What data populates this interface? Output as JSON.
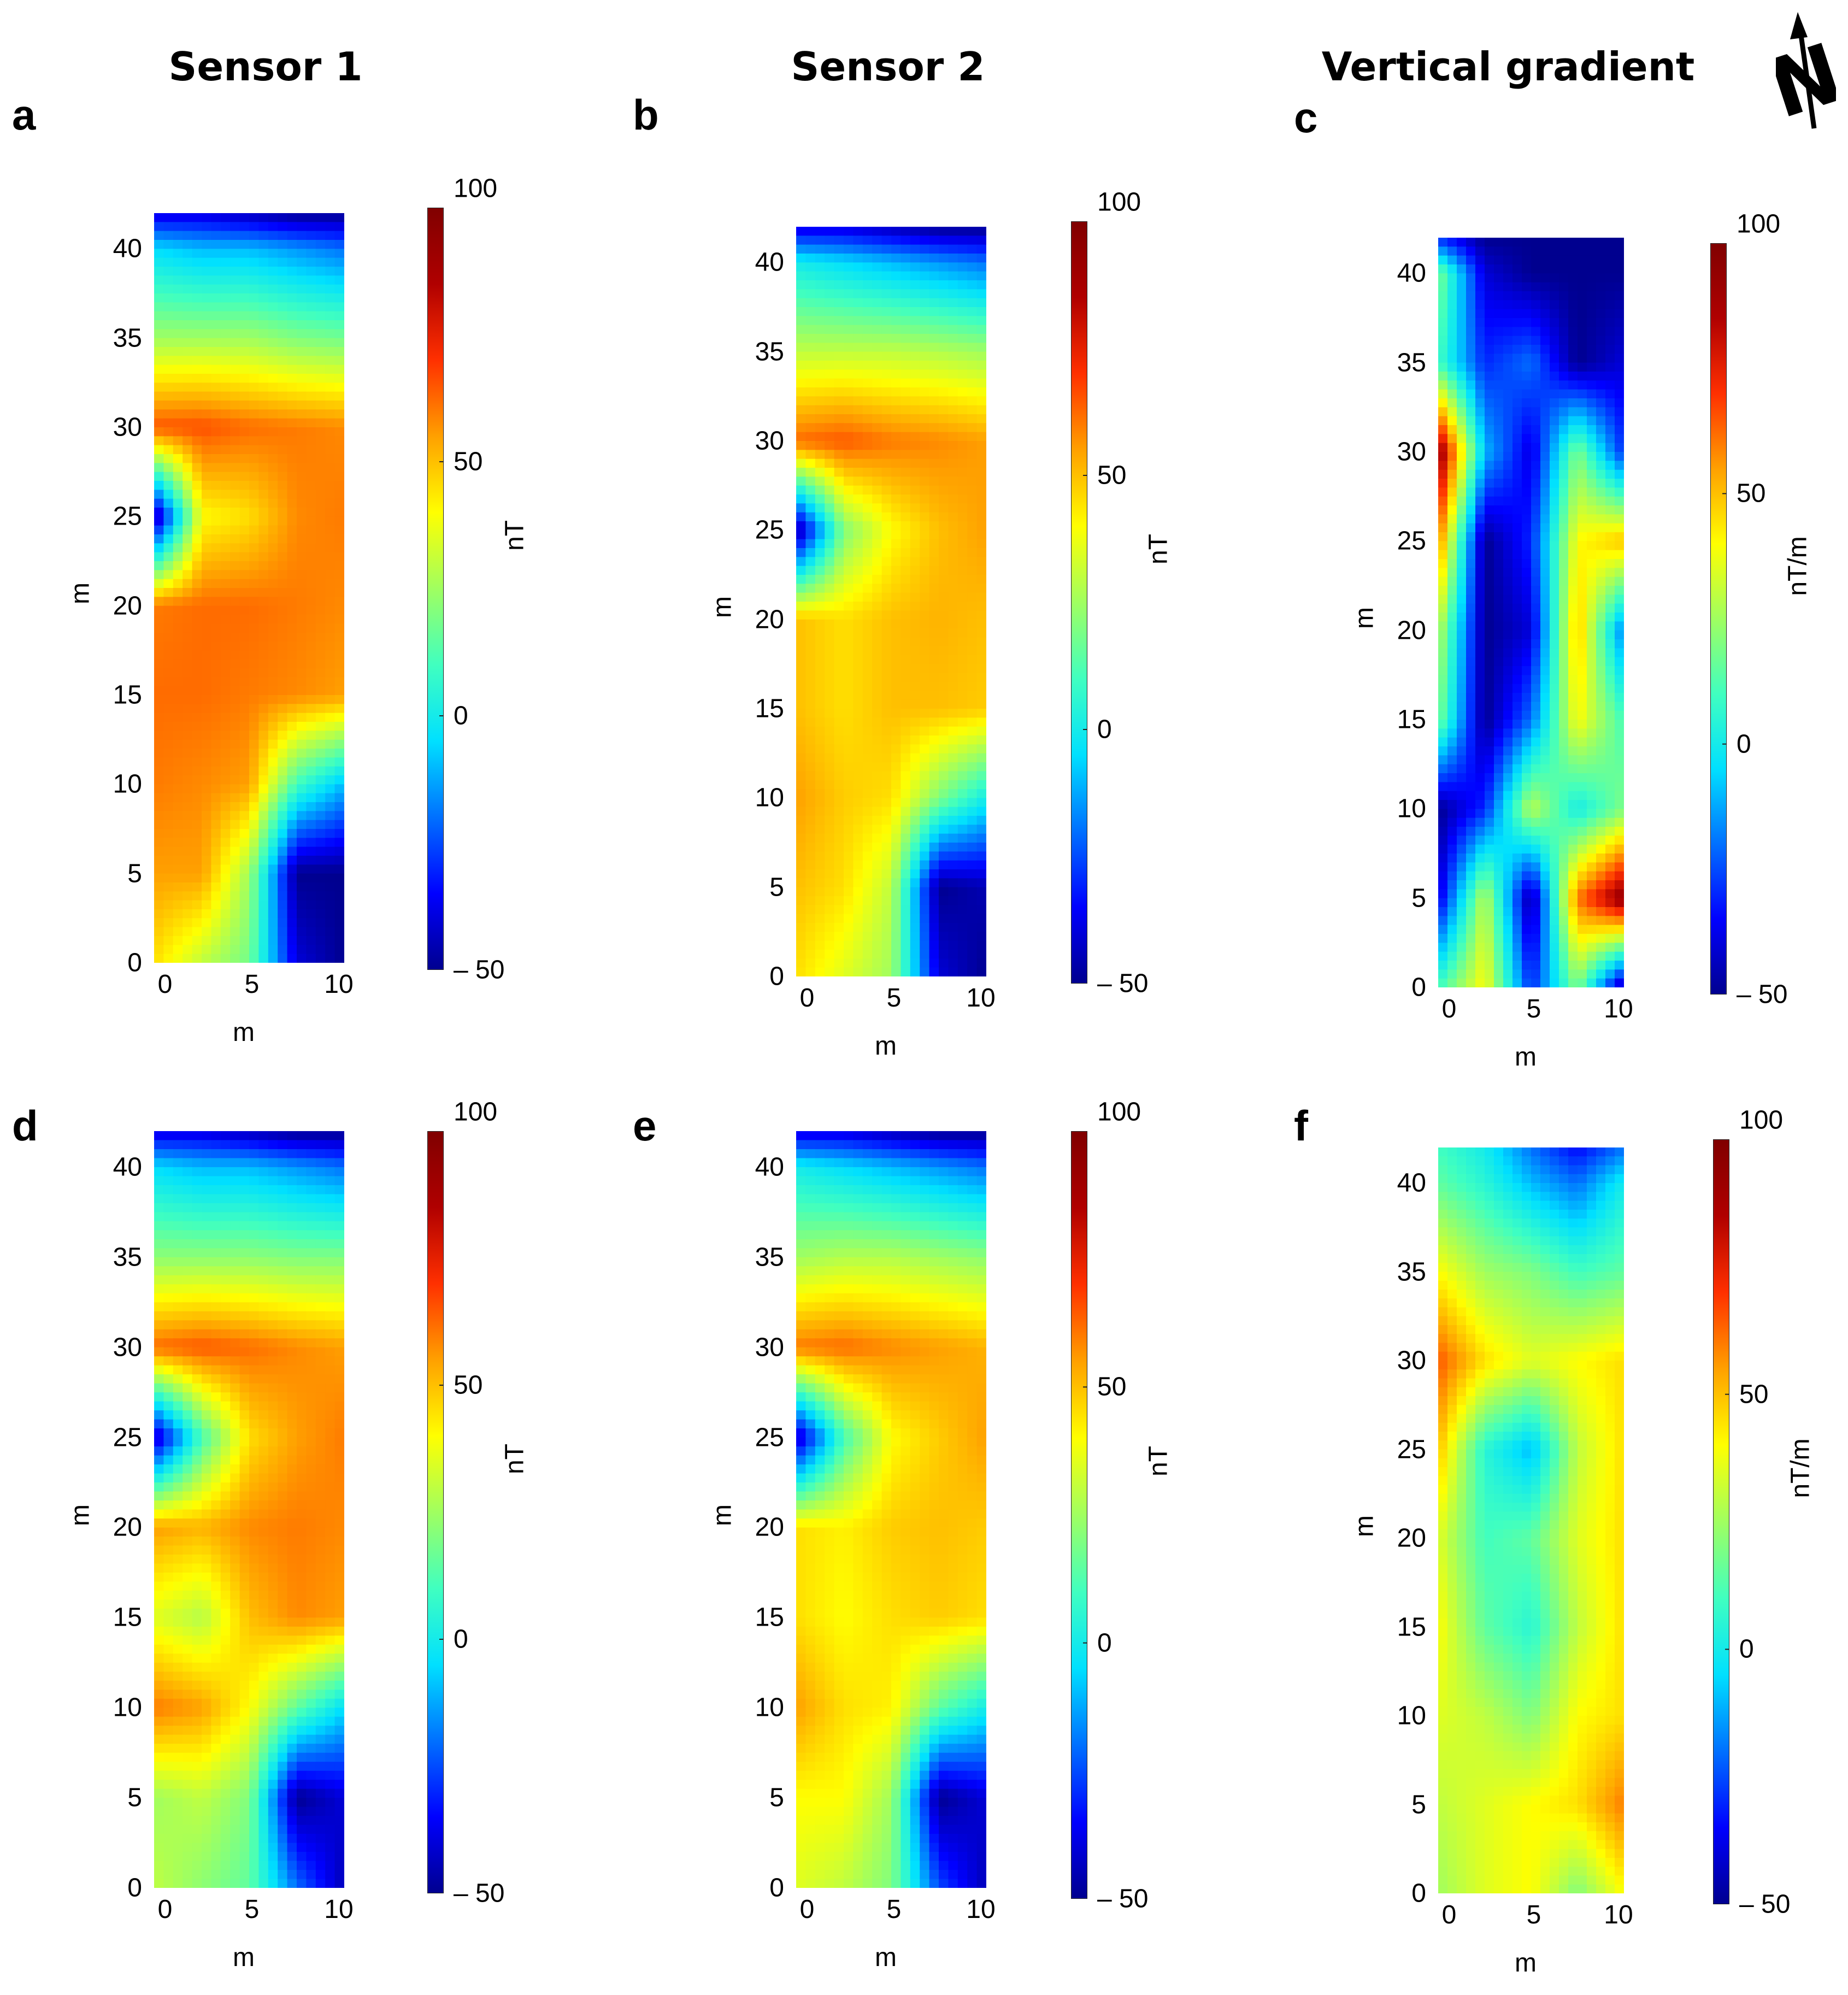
{
  "column_titles": [
    "Sensor 1",
    "Sensor 2",
    "Vertical gradient"
  ],
  "colors": {
    "colormap": [
      "#00008f",
      "#0000ff",
      "#0070ff",
      "#00e0ff",
      "#40ffc0",
      "#a0ff60",
      "#ffff00",
      "#ffa000",
      "#ff3000",
      "#b00000",
      "#800000"
    ],
    "text": "#000000"
  },
  "north_icon": "north-arrow-icon",
  "north_letter": "N",
  "chart_data": [
    {
      "panel": "a",
      "type": "heatmap",
      "title": "Sensor 1",
      "xlabel": "m",
      "ylabel": "m",
      "colorbar_label": "nT",
      "xlim": [
        0,
        10
      ],
      "ylim": [
        0,
        42
      ],
      "clim": [
        -50,
        100
      ],
      "xticks": [
        "0",
        "5",
        "10"
      ],
      "xtick_values": [
        0,
        5,
        10
      ],
      "yticks": [
        "0",
        "5",
        "10",
        "15",
        "20",
        "25",
        "30",
        "35",
        "40"
      ],
      "ytick_values": [
        0,
        5,
        10,
        15,
        20,
        25,
        30,
        35,
        40
      ],
      "cbar_ticks": [
        "100",
        "50",
        "0",
        "– 50"
      ],
      "cbar_tick_values": [
        100,
        50,
        0,
        -50
      ],
      "grid_x": [
        0,
        2.5,
        5,
        7.5,
        10
      ],
      "grid_y": [
        0,
        5,
        10,
        15,
        20,
        25,
        30,
        35,
        40,
        42
      ],
      "values": [
        [
          45,
          30,
          18,
          -40,
          -50
        ],
        [
          55,
          55,
          25,
          -50,
          -50
        ],
        [
          60,
          58,
          55,
          10,
          -10
        ],
        [
          62,
          62,
          60,
          58,
          55
        ],
        [
          60,
          62,
          62,
          60,
          58
        ],
        [
          -50,
          40,
          45,
          58,
          60
        ],
        [
          65,
          66,
          62,
          60,
          58
        ],
        [
          25,
          25,
          25,
          20,
          18
        ],
        [
          -5,
          -10,
          -10,
          -15,
          -20
        ],
        [
          -40,
          -40,
          -45,
          -50,
          -50
        ]
      ]
    },
    {
      "panel": "b",
      "type": "heatmap",
      "title": "Sensor 2",
      "xlabel": "m",
      "ylabel": "m",
      "colorbar_label": "nT",
      "xlim": [
        0,
        10
      ],
      "ylim": [
        0,
        42
      ],
      "clim": [
        -50,
        100
      ],
      "xticks": [
        "0",
        "5",
        "10"
      ],
      "xtick_values": [
        0,
        5,
        10
      ],
      "yticks": [
        "0",
        "5",
        "10",
        "15",
        "20",
        "25",
        "30",
        "35",
        "40"
      ],
      "ytick_values": [
        0,
        5,
        10,
        15,
        20,
        25,
        30,
        35,
        40
      ],
      "cbar_ticks": [
        "100",
        "50",
        "0",
        "– 50"
      ],
      "cbar_tick_values": [
        100,
        50,
        0,
        -50
      ],
      "grid_x": [
        0,
        2.5,
        5,
        7.5,
        10
      ],
      "grid_y": [
        0,
        5,
        10,
        15,
        20,
        25,
        30,
        35,
        40,
        42
      ],
      "values": [
        [
          45,
          35,
          25,
          -40,
          -50
        ],
        [
          50,
          45,
          30,
          -50,
          -45
        ],
        [
          55,
          48,
          45,
          20,
          0
        ],
        [
          50,
          45,
          50,
          50,
          48
        ],
        [
          50,
          45,
          50,
          52,
          50
        ],
        [
          -50,
          20,
          40,
          50,
          55
        ],
        [
          62,
          65,
          60,
          58,
          55
        ],
        [
          30,
          30,
          30,
          28,
          25
        ],
        [
          0,
          -5,
          -10,
          -15,
          -20
        ],
        [
          -40,
          -40,
          -45,
          -50,
          -50
        ]
      ]
    },
    {
      "panel": "c",
      "type": "heatmap",
      "title": "Vertical gradient",
      "xlabel": "m",
      "ylabel": "m",
      "colorbar_label": "nT/m",
      "xlim": [
        0,
        10
      ],
      "ylim": [
        0,
        42
      ],
      "clim": [
        -50,
        100
      ],
      "xticks": [
        "0",
        "5",
        "10"
      ],
      "xtick_values": [
        0,
        5,
        10
      ],
      "yticks": [
        "0",
        "5",
        "10",
        "15",
        "20",
        "25",
        "30",
        "35",
        "40"
      ],
      "ytick_values": [
        0,
        5,
        10,
        15,
        20,
        25,
        30,
        35,
        40
      ],
      "cbar_ticks": [
        "100",
        "50",
        "0",
        "– 50"
      ],
      "cbar_tick_values": [
        100,
        50,
        0,
        -50
      ],
      "grid_x": [
        0,
        2.5,
        5,
        7.5,
        10
      ],
      "grid_y": [
        0,
        5,
        10,
        15,
        20,
        25,
        30,
        35,
        40,
        42
      ],
      "values": [
        [
          10,
          40,
          -30,
          20,
          -50
        ],
        [
          -40,
          30,
          -50,
          60,
          95
        ],
        [
          -50,
          -30,
          30,
          0,
          20
        ],
        [
          20,
          -50,
          -20,
          40,
          10
        ],
        [
          30,
          -50,
          -40,
          50,
          -20
        ],
        [
          60,
          -50,
          -30,
          40,
          50
        ],
        [
          95,
          -10,
          -40,
          20,
          -30
        ],
        [
          10,
          -30,
          -20,
          -50,
          -40
        ],
        [
          20,
          -40,
          -50,
          -50,
          -50
        ],
        [
          -30,
          -50,
          -50,
          -50,
          -50
        ]
      ]
    },
    {
      "panel": "d",
      "type": "heatmap",
      "xlabel": "m",
      "ylabel": "m",
      "colorbar_label": "nT",
      "xlim": [
        0,
        10
      ],
      "ylim": [
        0,
        42
      ],
      "clim": [
        -50,
        100
      ],
      "xticks": [
        "0",
        "5",
        "10"
      ],
      "xtick_values": [
        0,
        5,
        10
      ],
      "yticks": [
        "0",
        "5",
        "10",
        "15",
        "20",
        "25",
        "30",
        "35",
        "40"
      ],
      "ytick_values": [
        0,
        5,
        10,
        15,
        20,
        25,
        30,
        35,
        40
      ],
      "cbar_ticks": [
        "100",
        "50",
        "0",
        "– 50"
      ],
      "cbar_tick_values": [
        100,
        50,
        0,
        -50
      ],
      "grid_x": [
        0,
        2.5,
        5,
        7.5,
        10
      ],
      "grid_y": [
        0,
        5,
        10,
        15,
        20,
        25,
        30,
        35,
        40,
        42
      ],
      "values": [
        [
          30,
          22,
          15,
          -20,
          -45
        ],
        [
          25,
          30,
          20,
          -50,
          -40
        ],
        [
          60,
          55,
          40,
          15,
          -5
        ],
        [
          35,
          28,
          50,
          58,
          55
        ],
        [
          55,
          52,
          58,
          60,
          58
        ],
        [
          -45,
          10,
          45,
          55,
          60
        ],
        [
          62,
          65,
          62,
          58,
          55
        ],
        [
          22,
          22,
          22,
          20,
          20
        ],
        [
          -5,
          -10,
          -10,
          -15,
          -20
        ],
        [
          -40,
          -40,
          -45,
          -50,
          -50
        ]
      ]
    },
    {
      "panel": "e",
      "type": "heatmap",
      "xlabel": "m",
      "ylabel": "m",
      "colorbar_label": "nT",
      "xlim": [
        0,
        10
      ],
      "ylim": [
        0,
        42
      ],
      "clim": [
        -50,
        100
      ],
      "xticks": [
        "0",
        "5",
        "10"
      ],
      "xtick_values": [
        0,
        5,
        10
      ],
      "yticks": [
        "0",
        "5",
        "10",
        "15",
        "20",
        "25",
        "30",
        "35",
        "40"
      ],
      "ytick_values": [
        0,
        5,
        10,
        15,
        20,
        25,
        30,
        35,
        40
      ],
      "cbar_ticks": [
        "100",
        "50",
        "0",
        "– 50"
      ],
      "cbar_tick_values": [
        100,
        50,
        0,
        -50
      ],
      "grid_x": [
        0,
        2.5,
        5,
        7.5,
        10
      ],
      "grid_y": [
        0,
        5,
        10,
        15,
        20,
        25,
        30,
        35,
        40,
        42
      ],
      "values": [
        [
          35,
          30,
          20,
          -25,
          -45
        ],
        [
          40,
          40,
          25,
          -50,
          -40
        ],
        [
          55,
          45,
          42,
          15,
          0
        ],
        [
          45,
          40,
          45,
          48,
          45
        ],
        [
          45,
          42,
          48,
          50,
          48
        ],
        [
          -45,
          10,
          40,
          48,
          55
        ],
        [
          60,
          62,
          58,
          55,
          52
        ],
        [
          25,
          28,
          28,
          25,
          22
        ],
        [
          0,
          -5,
          -10,
          -15,
          -20
        ],
        [
          -40,
          -40,
          -45,
          -50,
          -50
        ]
      ]
    },
    {
      "panel": "f",
      "type": "heatmap",
      "xlabel": "m",
      "ylabel": "m",
      "colorbar_label": "nT/m",
      "xlim": [
        0,
        10
      ],
      "ylim": [
        0,
        42
      ],
      "clim": [
        -50,
        100
      ],
      "xticks": [
        "0",
        "5",
        "10"
      ],
      "xtick_values": [
        0,
        5,
        10
      ],
      "yticks": [
        "0",
        "5",
        "10",
        "15",
        "20",
        "25",
        "30",
        "35",
        "40"
      ],
      "ytick_values": [
        0,
        5,
        10,
        15,
        20,
        25,
        30,
        35,
        40
      ],
      "cbar_ticks": [
        "100",
        "50",
        "0",
        "– 50"
      ],
      "cbar_tick_values": [
        100,
        50,
        0,
        -50
      ],
      "grid_x": [
        0,
        2.5,
        5,
        7.5,
        10
      ],
      "grid_y": [
        0,
        5,
        10,
        15,
        20,
        25,
        30,
        35,
        40,
        42
      ],
      "values": [
        [
          25,
          35,
          40,
          20,
          40
        ],
        [
          30,
          35,
          40,
          45,
          60
        ],
        [
          35,
          30,
          20,
          40,
          45
        ],
        [
          40,
          15,
          5,
          30,
          45
        ],
        [
          35,
          10,
          15,
          35,
          45
        ],
        [
          50,
          5,
          -10,
          30,
          45
        ],
        [
          65,
          45,
          35,
          40,
          45
        ],
        [
          40,
          25,
          20,
          10,
          15
        ],
        [
          15,
          5,
          -10,
          -20,
          0
        ],
        [
          10,
          0,
          -20,
          -35,
          -20
        ]
      ]
    }
  ]
}
